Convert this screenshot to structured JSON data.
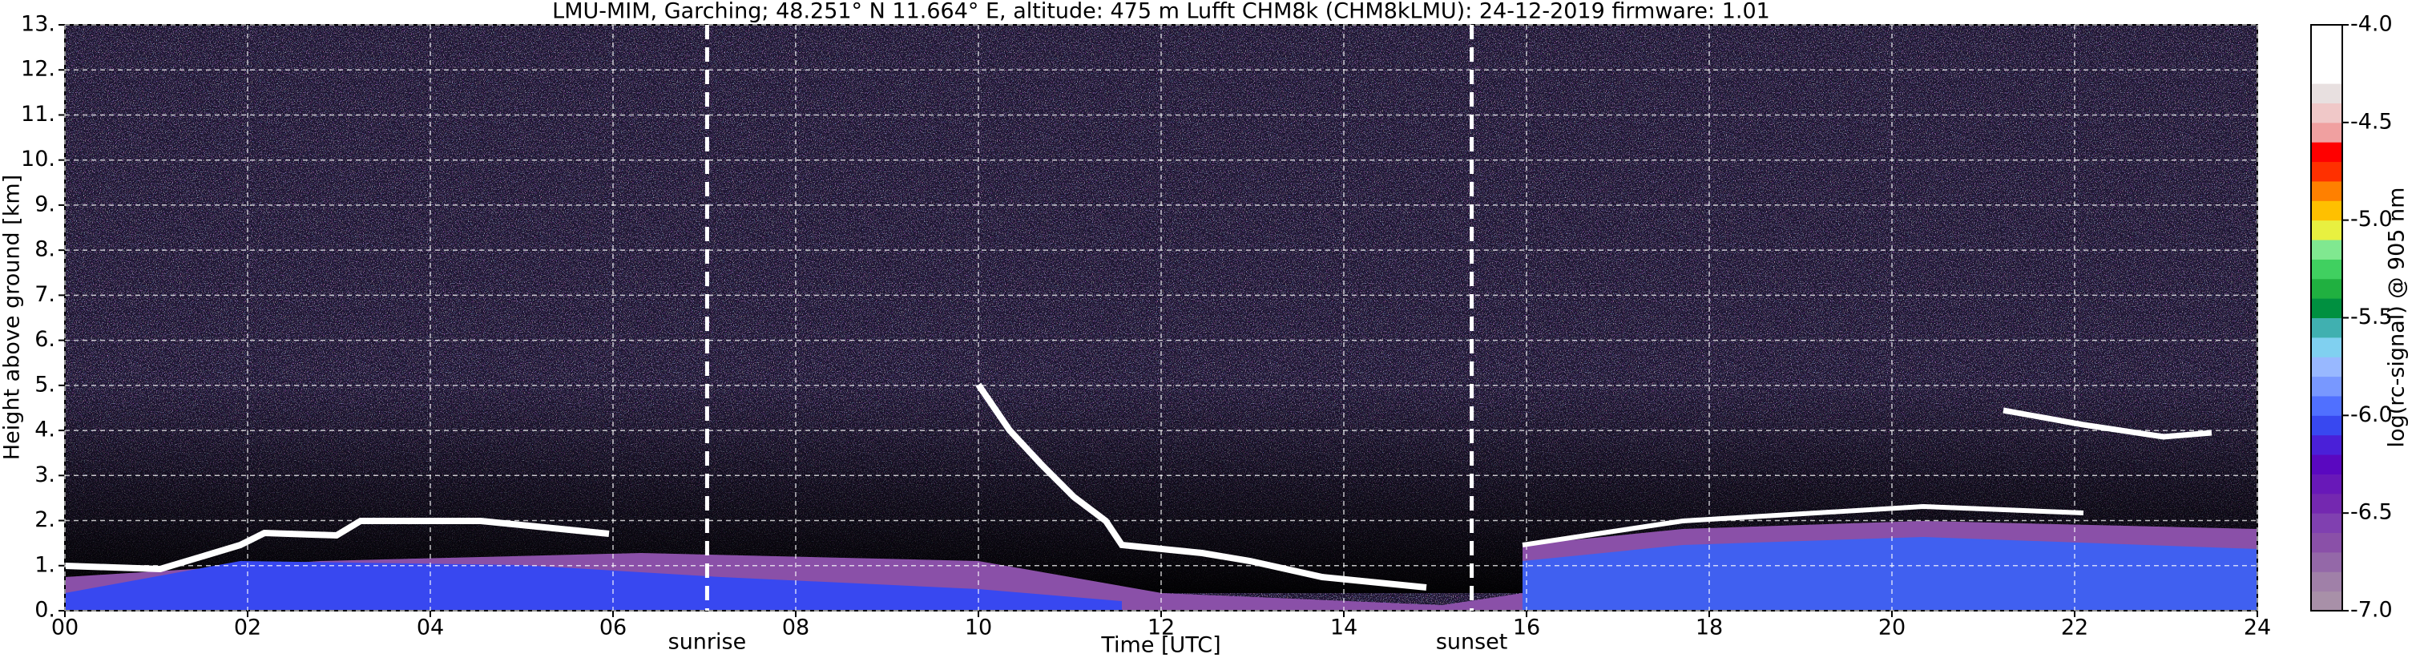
{
  "chart_data": {
    "type": "heatmap",
    "title": "LMU-MIM, Garching; 48.251° N 11.664° E, altitude: 475 m    Lufft CHM8k (CHM8kLMU): 24-12-2019    firmware: 1.01",
    "x_label": "Time [UTC]",
    "y_label": "Height above ground [km]",
    "xlim": [
      0,
      24
    ],
    "ylim": [
      0,
      13
    ],
    "xticks": [
      {
        "value": 0,
        "label": "00"
      },
      {
        "value": 2,
        "label": "02"
      },
      {
        "value": 4,
        "label": "04"
      },
      {
        "value": 6,
        "label": "06"
      },
      {
        "value": 8,
        "label": "08"
      },
      10,
      12,
      14,
      16,
      18,
      20,
      22,
      24
    ],
    "yticks": [
      {
        "value": 0,
        "label": "0."
      },
      {
        "value": 1,
        "label": "1."
      },
      {
        "value": 2,
        "label": "2."
      },
      {
        "value": 3,
        "label": "3."
      },
      {
        "value": 4,
        "label": "4."
      },
      {
        "value": 5,
        "label": "5."
      },
      {
        "value": 6,
        "label": "6."
      },
      {
        "value": 7,
        "label": "7."
      },
      {
        "value": 8,
        "label": "8."
      },
      {
        "value": 9,
        "label": "9."
      },
      {
        "value": 10,
        "label": "10."
      },
      {
        "value": 11,
        "label": "11."
      },
      {
        "value": 12,
        "label": "12."
      },
      {
        "value": 13,
        "label": "13."
      }
    ],
    "grid": true,
    "annotations": [
      {
        "label": "sunrise",
        "x": 7.03
      },
      {
        "label": "sunset",
        "x": 15.4
      }
    ],
    "colorbar": {
      "label": "log(rc-signal) @ 905 nm",
      "lim": [
        -7,
        -4
      ],
      "ticks": [
        {
          "value": -7,
          "label": "-7.0"
        },
        -6.5,
        {
          "value": -6,
          "label": "-6.0"
        },
        -5.5,
        {
          "value": -5,
          "label": "-5.0"
        },
        -4.5,
        {
          "value": -4,
          "label": "-4.0"
        }
      ],
      "colors": [
        "#a890a8",
        "#a080a8",
        "#9468a8",
        "#8a50a8",
        "#8040b0",
        "#7428b0",
        "#6818b8",
        "#5a08c0",
        "#4a20d8",
        "#3848f0",
        "#5070ff",
        "#7898ff",
        "#98b8ff",
        "#80d0f0",
        "#40b0b0",
        "#009040",
        "#20b040",
        "#40d060",
        "#80e890",
        "#e8f040",
        "#ffc000",
        "#ff8000",
        "#ff3000",
        "#ff0000",
        "#f0a0a0",
        "#f0c8c8",
        "#e8e0e0",
        "#ffffff",
        "#ffffff",
        "#ffffff"
      ]
    }
  }
}
